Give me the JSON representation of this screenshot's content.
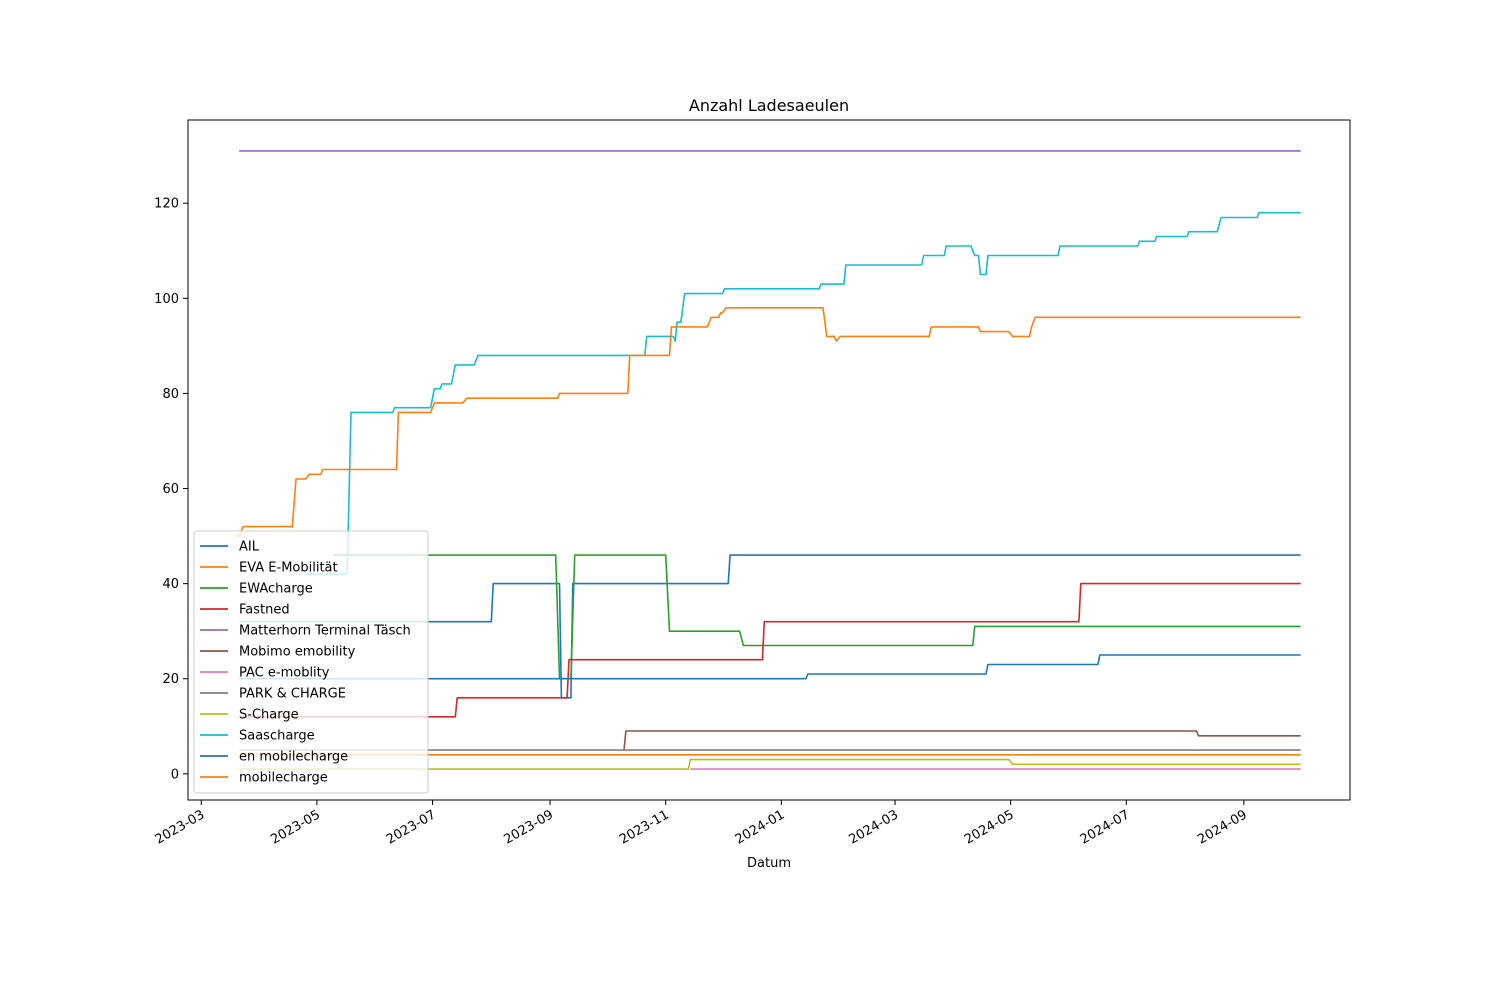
{
  "chart_data": {
    "type": "line",
    "title": "Anzahl Ladesaeulen",
    "xlabel": "Datum",
    "ylabel": "",
    "xlim": [
      "2023-02-22",
      "2024-10-27"
    ],
    "ylim": [
      -5.5,
      137.5
    ],
    "x_ticks": [
      "2023-03",
      "2023-05",
      "2023-07",
      "2023-09",
      "2023-11",
      "2024-01",
      "2024-03",
      "2024-05",
      "2024-07",
      "2024-09"
    ],
    "y_ticks": [
      0,
      20,
      40,
      60,
      80,
      100,
      120
    ],
    "legend_position": "lower-left",
    "series": [
      {
        "name": "AIL",
        "color": "#1f77b4",
        "points": [
          [
            "2023-03-21",
            32
          ],
          [
            "2023-08-01",
            32
          ],
          [
            "2023-08-02",
            40
          ],
          [
            "2023-09-06",
            40
          ],
          [
            "2023-09-07",
            16
          ],
          [
            "2023-09-12",
            16
          ],
          [
            "2023-09-13",
            40
          ],
          [
            "2023-12-04",
            40
          ],
          [
            "2023-12-05",
            46
          ],
          [
            "2024-10-01",
            46
          ]
        ]
      },
      {
        "name": "EVA E-Mobilität",
        "color": "#ff7f0e",
        "points": [
          [
            "2023-03-21",
            4
          ],
          [
            "2024-10-01",
            4
          ]
        ]
      },
      {
        "name": "EWAcharge",
        "color": "#2ca02c",
        "points": [
          [
            "2023-05-10",
            46
          ],
          [
            "2023-09-04",
            46
          ],
          [
            "2023-09-06",
            20
          ],
          [
            "2023-09-12",
            20
          ],
          [
            "2023-09-14",
            46
          ],
          [
            "2023-11-01",
            46
          ],
          [
            "2023-11-03",
            30
          ],
          [
            "2023-12-10",
            30
          ],
          [
            "2023-12-12",
            27
          ],
          [
            "2024-04-11",
            27
          ],
          [
            "2024-04-12",
            31
          ],
          [
            "2024-10-01",
            31
          ]
        ]
      },
      {
        "name": "Fastned",
        "color": "#d62728",
        "points": [
          [
            "2023-03-21",
            12
          ],
          [
            "2023-07-13",
            12
          ],
          [
            "2023-07-14",
            16
          ],
          [
            "2023-09-10",
            16
          ],
          [
            "2023-09-11",
            24
          ],
          [
            "2023-12-22",
            24
          ],
          [
            "2023-12-23",
            32
          ],
          [
            "2024-06-06",
            32
          ],
          [
            "2024-06-07",
            40
          ],
          [
            "2024-10-01",
            40
          ]
        ]
      },
      {
        "name": "Matterhorn Terminal Täsch",
        "color": "#9467bd",
        "points": [
          [
            "2023-03-21",
            131
          ],
          [
            "2024-10-01",
            131
          ]
        ]
      },
      {
        "name": "Mobimo emobility",
        "color": "#8c564b",
        "points": [
          [
            "2023-10-10",
            5
          ],
          [
            "2023-10-11",
            9
          ],
          [
            "2024-08-07",
            9
          ],
          [
            "2024-08-08",
            8
          ],
          [
            "2024-10-01",
            8
          ]
        ]
      },
      {
        "name": "PAC e-moblity",
        "color": "#e377c2",
        "points": [
          [
            "2023-11-14",
            1
          ],
          [
            "2024-10-01",
            1
          ]
        ]
      },
      {
        "name": "PARK & CHARGE",
        "color": "#7f7f7f",
        "points": [
          [
            "2023-03-21",
            5
          ],
          [
            "2024-10-01",
            5
          ]
        ]
      },
      {
        "name": "S-Charge",
        "color": "#bcbd22",
        "points": [
          [
            "2023-03-21",
            1
          ],
          [
            "2023-11-13",
            1
          ],
          [
            "2023-11-14",
            3
          ],
          [
            "2024-04-30",
            3
          ],
          [
            "2024-05-02",
            2
          ],
          [
            "2024-10-01",
            2
          ]
        ]
      },
      {
        "name": "Saascharge",
        "color": "#17becf",
        "points": [
          [
            "2023-04-25",
            42
          ],
          [
            "2023-05-17",
            42
          ],
          [
            "2023-05-19",
            76
          ],
          [
            "2023-06-10",
            76
          ],
          [
            "2023-06-11",
            77
          ],
          [
            "2023-06-30",
            77
          ],
          [
            "2023-07-02",
            81
          ],
          [
            "2023-07-05",
            81
          ],
          [
            "2023-07-06",
            82
          ],
          [
            "2023-07-11",
            82
          ],
          [
            "2023-07-13",
            86
          ],
          [
            "2023-07-23",
            86
          ],
          [
            "2023-07-25",
            88
          ],
          [
            "2023-10-21",
            88
          ],
          [
            "2023-10-22",
            92
          ],
          [
            "2023-11-05",
            92
          ],
          [
            "2023-11-06",
            91
          ],
          [
            "2023-11-07",
            95
          ],
          [
            "2023-11-09",
            95
          ],
          [
            "2023-11-11",
            101
          ],
          [
            "2023-12-01",
            101
          ],
          [
            "2023-12-02",
            102
          ],
          [
            "2024-01-21",
            102
          ],
          [
            "2024-01-22",
            103
          ],
          [
            "2024-02-03",
            103
          ],
          [
            "2024-02-04",
            107
          ],
          [
            "2024-03-15",
            107
          ],
          [
            "2024-03-16",
            109
          ],
          [
            "2024-03-27",
            109
          ],
          [
            "2024-03-28",
            111
          ],
          [
            "2024-04-10",
            111
          ],
          [
            "2024-04-12",
            109
          ],
          [
            "2024-04-14",
            109
          ],
          [
            "2024-04-15",
            105
          ],
          [
            "2024-04-18",
            105
          ],
          [
            "2024-04-19",
            109
          ],
          [
            "2024-05-26",
            109
          ],
          [
            "2024-05-27",
            111
          ],
          [
            "2024-07-07",
            111
          ],
          [
            "2024-07-08",
            112
          ],
          [
            "2024-07-16",
            112
          ],
          [
            "2024-07-17",
            113
          ],
          [
            "2024-08-02",
            113
          ],
          [
            "2024-08-03",
            114
          ],
          [
            "2024-08-18",
            114
          ],
          [
            "2024-08-20",
            117
          ],
          [
            "2024-09-08",
            117
          ],
          [
            "2024-09-09",
            118
          ],
          [
            "2024-10-01",
            118
          ]
        ]
      },
      {
        "name": "en mobilecharge",
        "color": "#1f77b4",
        "points": [
          [
            "2023-03-21",
            20
          ],
          [
            "2024-01-14",
            20
          ],
          [
            "2024-01-15",
            21
          ],
          [
            "2024-04-18",
            21
          ],
          [
            "2024-04-19",
            23
          ],
          [
            "2024-06-16",
            23
          ],
          [
            "2024-06-17",
            25
          ],
          [
            "2024-10-01",
            25
          ]
        ]
      },
      {
        "name": "mobilecharge",
        "color": "#ff7f0e",
        "points": [
          [
            "2023-03-19",
            50
          ],
          [
            "2023-03-21",
            50
          ],
          [
            "2023-03-23",
            52
          ],
          [
            "2023-04-18",
            52
          ],
          [
            "2023-04-20",
            62
          ],
          [
            "2023-04-25",
            62
          ],
          [
            "2023-04-27",
            63
          ],
          [
            "2023-05-03",
            63
          ],
          [
            "2023-05-04",
            64
          ],
          [
            "2023-06-12",
            64
          ],
          [
            "2023-06-13",
            76
          ],
          [
            "2023-06-30",
            76
          ],
          [
            "2023-07-02",
            78
          ],
          [
            "2023-07-17",
            78
          ],
          [
            "2023-07-19",
            79
          ],
          [
            "2023-09-05",
            79
          ],
          [
            "2023-09-06",
            80
          ],
          [
            "2023-10-12",
            80
          ],
          [
            "2023-10-13",
            88
          ],
          [
            "2023-11-03",
            88
          ],
          [
            "2023-11-04",
            94
          ],
          [
            "2023-11-23",
            94
          ],
          [
            "2023-11-25",
            96
          ],
          [
            "2023-11-29",
            96
          ],
          [
            "2023-11-30",
            97
          ],
          [
            "2023-12-01",
            97
          ],
          [
            "2023-12-03",
            98
          ],
          [
            "2024-01-23",
            98
          ],
          [
            "2024-01-25",
            92
          ],
          [
            "2024-01-29",
            92
          ],
          [
            "2024-01-30",
            91
          ],
          [
            "2024-02-01",
            92
          ],
          [
            "2024-03-19",
            92
          ],
          [
            "2024-03-20",
            94
          ],
          [
            "2024-04-14",
            94
          ],
          [
            "2024-04-15",
            93
          ],
          [
            "2024-04-30",
            93
          ],
          [
            "2024-05-02",
            92
          ],
          [
            "2024-05-11",
            92
          ],
          [
            "2024-05-12",
            94
          ],
          [
            "2024-05-14",
            96
          ],
          [
            "2024-10-01",
            96
          ]
        ]
      }
    ]
  }
}
